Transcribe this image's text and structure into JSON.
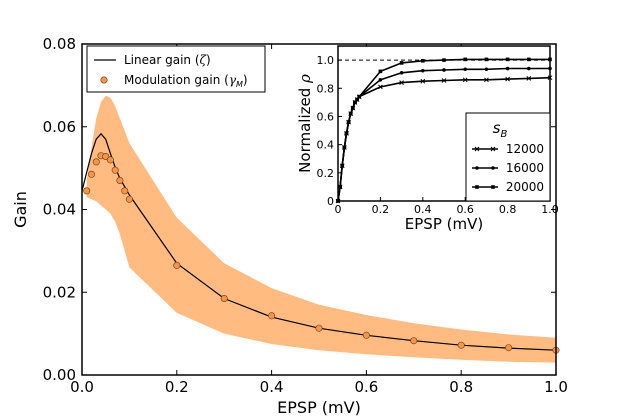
{
  "chart_data": [
    {
      "type": "line",
      "xlabel": "EPSP (mV)",
      "ylabel": "Gain",
      "xlim": [
        0.0,
        1.0
      ],
      "ylim": [
        0.0,
        0.08
      ],
      "xticks": [
        "0.0",
        "0.2",
        "0.4",
        "0.6",
        "0.8",
        "1.0"
      ],
      "yticks": [
        "0.00",
        "0.02",
        "0.04",
        "0.06",
        "0.08"
      ],
      "legend_position": "top-left",
      "band": {
        "x": [
          0.01,
          0.02,
          0.03,
          0.04,
          0.05,
          0.06,
          0.07,
          0.08,
          0.09,
          0.1,
          0.2,
          0.3,
          0.4,
          0.5,
          0.6,
          0.7,
          0.8,
          0.9,
          1.0
        ],
        "upper": [
          0.047,
          0.055,
          0.062,
          0.066,
          0.0675,
          0.067,
          0.065,
          0.062,
          0.059,
          0.056,
          0.038,
          0.027,
          0.021,
          0.017,
          0.0145,
          0.0125,
          0.011,
          0.0098,
          0.009
        ],
        "lower": [
          0.043,
          0.0425,
          0.042,
          0.041,
          0.04,
          0.039,
          0.037,
          0.034,
          0.03,
          0.026,
          0.015,
          0.01,
          0.0075,
          0.006,
          0.005,
          0.0043,
          0.0037,
          0.0032,
          0.003
        ],
        "color": "#ffbb80"
      },
      "series": [
        {
          "name": "Linear gain (ζ)",
          "x": [
            0.0,
            0.01,
            0.02,
            0.03,
            0.04,
            0.05,
            0.06,
            0.07,
            0.08,
            0.09,
            0.1,
            0.2,
            0.3,
            0.4,
            0.5,
            0.6,
            0.7,
            0.8,
            0.9,
            1.0
          ],
          "y": [
            0.0445,
            0.049,
            0.0535,
            0.057,
            0.0583,
            0.057,
            0.0535,
            0.0502,
            0.0475,
            0.0455,
            0.0435,
            0.027,
            0.0185,
            0.014,
            0.0113,
            0.0096,
            0.0083,
            0.0072,
            0.0065,
            0.006
          ],
          "color": "#000000"
        },
        {
          "name": "Modulation gain (γ_M)",
          "x": [
            0.01,
            0.02,
            0.03,
            0.04,
            0.05,
            0.06,
            0.07,
            0.08,
            0.09,
            0.1,
            0.2,
            0.3,
            0.4,
            0.5,
            0.6,
            0.7,
            0.8,
            0.9,
            1.0
          ],
          "y": [
            0.0445,
            0.0485,
            0.0515,
            0.053,
            0.0528,
            0.052,
            0.0495,
            0.047,
            0.0445,
            0.0425,
            0.0265,
            0.0185,
            0.0143,
            0.0113,
            0.0096,
            0.0083,
            0.0072,
            0.0066,
            0.006
          ],
          "marker": "circle",
          "color": "#f5954a"
        }
      ],
      "legend": {
        "line_label": "Linear gain (",
        "line_symbol": "ζ",
        "dot_label": "Modulation gain (",
        "dot_symbol": "γ",
        "dot_subscript": "M",
        "close": ")"
      }
    },
    {
      "type": "line",
      "xlabel": "EPSP (mV)",
      "ylabel_text": "Normalized ",
      "ylabel_symbol": "ρ",
      "xlim": [
        0.0,
        1.0
      ],
      "ylim": [
        0.0,
        1.1
      ],
      "xticks": [
        "0",
        "0.2",
        "0.4",
        "0.6",
        "0.8",
        "1.0"
      ],
      "yticks": [
        "0",
        "0.2",
        "0.4",
        "0.6",
        "0.8",
        "1.0"
      ],
      "reference_line": 1.0,
      "legend_position": "lower-right",
      "legend_title_symbol": "s",
      "legend_title_subscript": "B",
      "x": [
        0.0,
        0.01,
        0.02,
        0.03,
        0.04,
        0.05,
        0.06,
        0.07,
        0.08,
        0.09,
        0.1,
        0.2,
        0.3,
        0.4,
        0.5,
        0.6,
        0.7,
        0.8,
        0.9,
        1.0
      ],
      "series": [
        {
          "name": "12000",
          "marker": "x",
          "y": [
            0.0,
            0.1,
            0.25,
            0.38,
            0.48,
            0.56,
            0.62,
            0.66,
            0.7,
            0.72,
            0.74,
            0.81,
            0.84,
            0.85,
            0.855,
            0.86,
            0.86,
            0.865,
            0.87,
            0.875
          ]
        },
        {
          "name": "16000",
          "marker": "circle",
          "y": [
            0.0,
            0.1,
            0.25,
            0.38,
            0.48,
            0.56,
            0.62,
            0.66,
            0.7,
            0.72,
            0.74,
            0.86,
            0.91,
            0.925,
            0.93,
            0.935,
            0.935,
            0.94,
            0.94,
            0.94
          ]
        },
        {
          "name": "20000",
          "marker": "square",
          "y": [
            0.0,
            0.1,
            0.25,
            0.38,
            0.48,
            0.56,
            0.62,
            0.66,
            0.7,
            0.72,
            0.74,
            0.92,
            0.98,
            0.995,
            1.0,
            1.005,
            1.005,
            1.005,
            1.005,
            1.005
          ]
        }
      ]
    }
  ]
}
